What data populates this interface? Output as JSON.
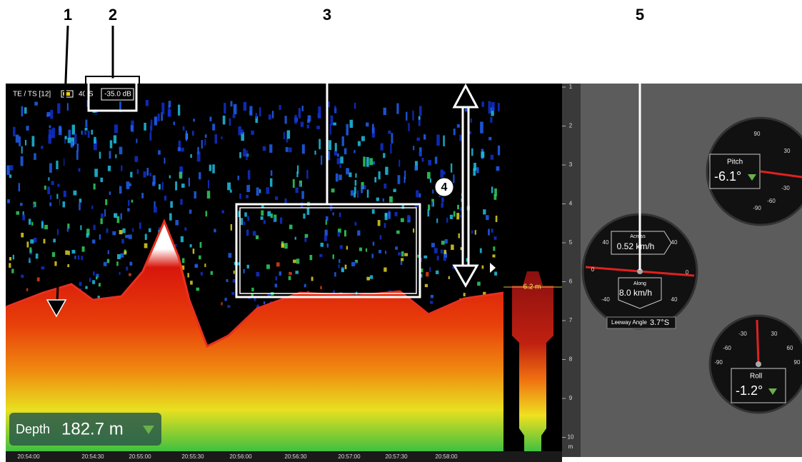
{
  "callouts": [
    "1",
    "2",
    "3",
    "4",
    "5"
  ],
  "echogram": {
    "mode": "TE / TS [12]",
    "range": "40 S",
    "threshold": "-35.0 dB",
    "depth_label": "Depth",
    "depth_value": "182.7 m",
    "bottom_marker": "6.2 m",
    "depth_scale": [
      "1",
      "2",
      "3",
      "4",
      "5",
      "6",
      "7",
      "8",
      "9",
      "10"
    ],
    "depth_unit": "m",
    "times": [
      "20:54:00",
      "20:54:30",
      "20:55:00",
      "20:55:30",
      "20:56:00",
      "20:56:30",
      "20:57:00",
      "20:57:30",
      "20:58:00"
    ]
  },
  "gauges": {
    "pitch": {
      "title": "Pitch",
      "value": "-6.1°",
      "ticks": [
        "90",
        "30",
        "-30",
        "-60",
        "-90"
      ]
    },
    "speed": {
      "across_label": "Across",
      "across_value": "0.52 km/h",
      "along_label": "Along",
      "along_value": "8.0 km/h",
      "ticks": [
        "40",
        "40",
        "0",
        "0",
        "-40",
        "40"
      ],
      "leeway_label": "Leeway Angle",
      "leeway_value": "3.7°S"
    },
    "roll": {
      "title": "Roll",
      "value": "-1.2°",
      "ticks": [
        "-30",
        "30",
        "-60",
        "60",
        "-90",
        "90"
      ]
    }
  }
}
